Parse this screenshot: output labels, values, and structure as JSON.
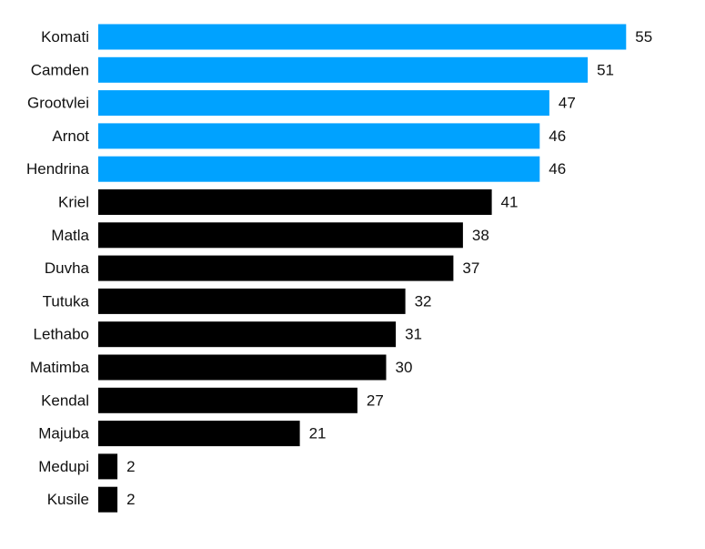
{
  "chart_data": {
    "type": "bar",
    "orientation": "horizontal",
    "categories": [
      "Komati",
      "Camden",
      "Grootvlei",
      "Arnot",
      "Hendrina",
      "Kriel",
      "Matla",
      "Duvha",
      "Tutuka",
      "Lethabo",
      "Matimba",
      "Kendal",
      "Majuba",
      "Medupi",
      "Kusile"
    ],
    "values": [
      55,
      51,
      47,
      46,
      46,
      41,
      38,
      37,
      32,
      31,
      30,
      27,
      21,
      2,
      2
    ],
    "bar_colors": [
      "#00a2ff",
      "#00a2ff",
      "#00a2ff",
      "#00a2ff",
      "#00a2ff",
      "#000000",
      "#000000",
      "#000000",
      "#000000",
      "#000000",
      "#000000",
      "#000000",
      "#000000",
      "#000000",
      "#000000"
    ],
    "title": "",
    "xlabel": "",
    "ylabel": "",
    "xlim": [
      0,
      55
    ],
    "grid": false,
    "legend": "none"
  }
}
